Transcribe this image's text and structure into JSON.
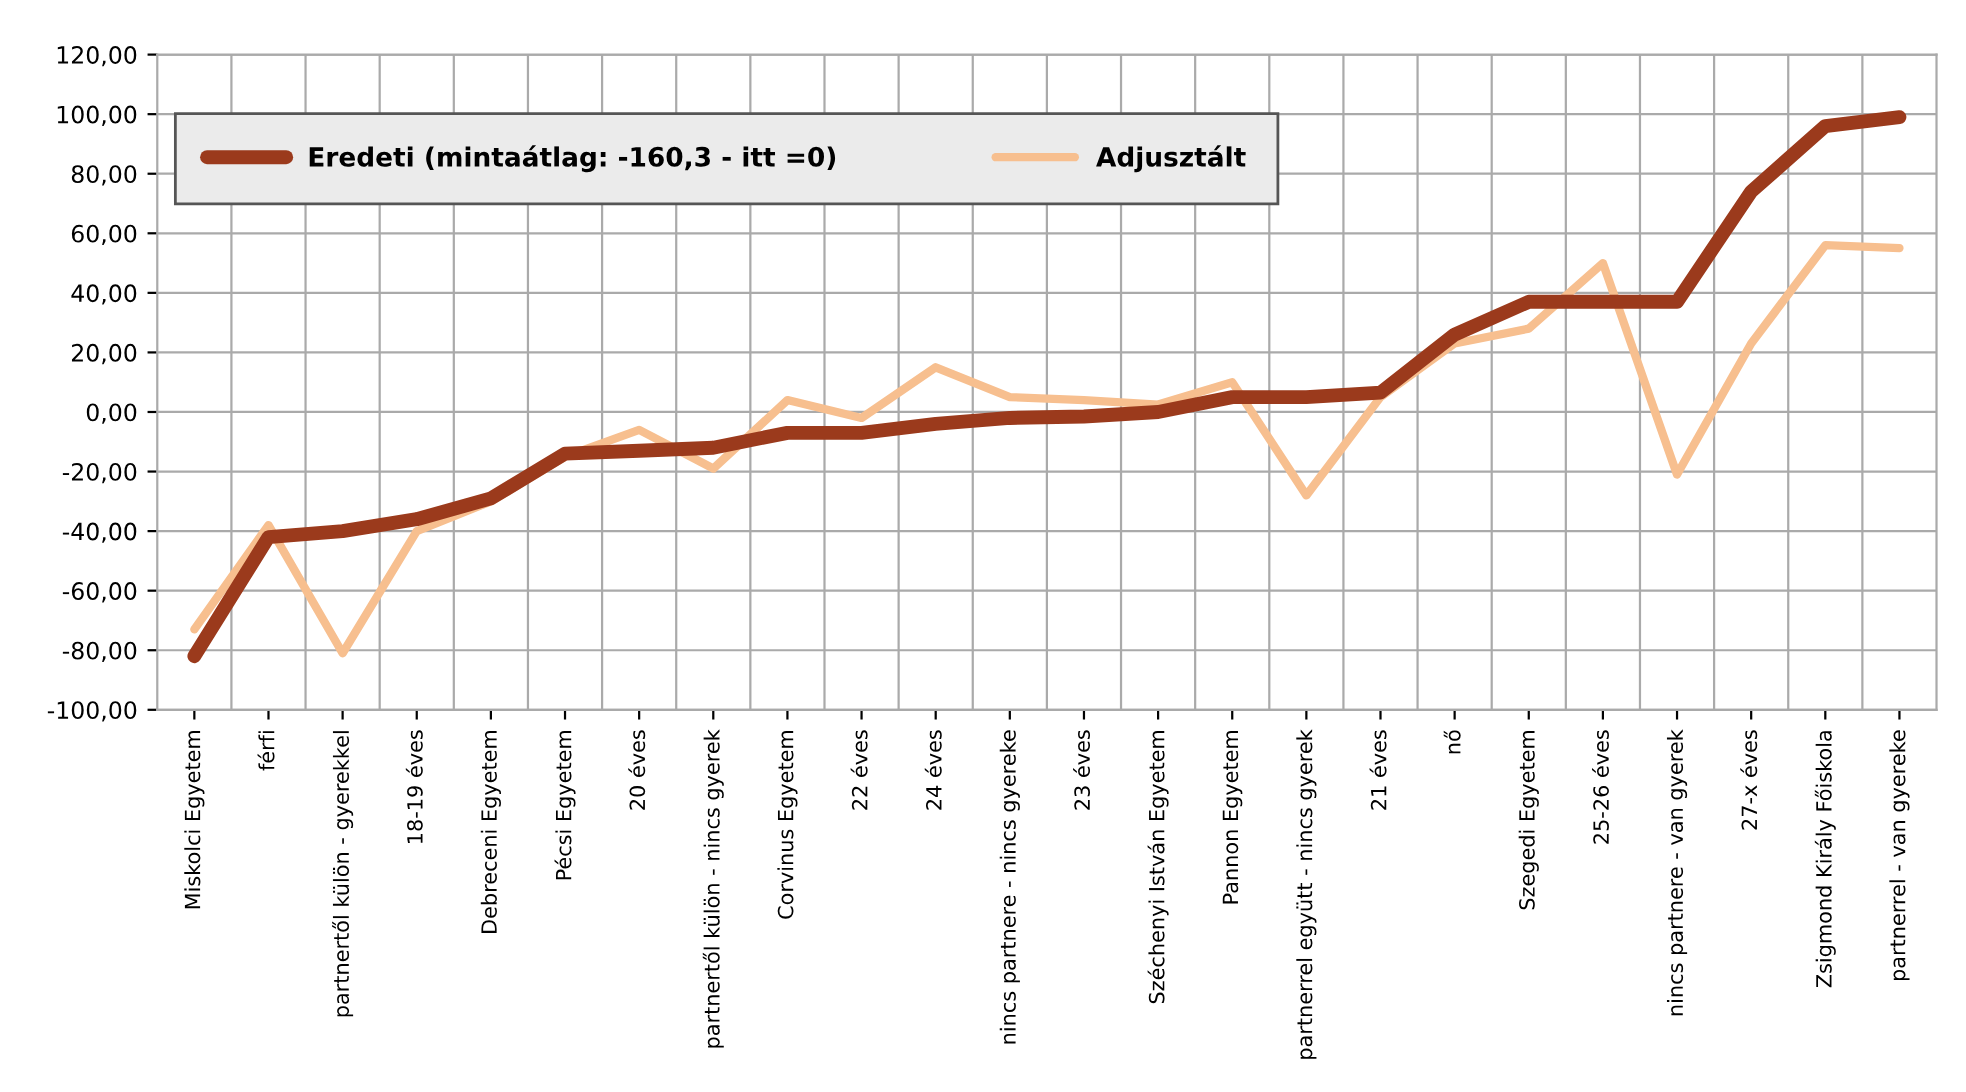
{
  "chart_data": {
    "type": "line",
    "categories": [
      "Miskolci Egyetem",
      "férfi",
      "partnertől külön - gyerekkel",
      "18-19 éves",
      "Debreceni Egyetem",
      "Pécsi Egyetem",
      "20 éves",
      "partnertől külön - nincs gyerek",
      "Corvinus Egyetem",
      "22 éves",
      "24 éves",
      "nincs partnere - nincs gyereke",
      "23 éves",
      "Széchenyi István Egyetem",
      "Pannon Egyetem",
      "partnerrel együtt - nincs gyerek",
      "21 éves",
      "nő",
      "Szegedi Egyetem",
      "25-26 éves",
      "nincs partnere - van gyerek",
      "27-x éves",
      "Zsigmond Király Főiskola",
      "partnerrel - van gyereke"
    ],
    "series": [
      {
        "name": "Eredeti (mintaátlag: -160,3 - itt =0)",
        "color": "#9b3a1c",
        "values": [
          -82,
          -42,
          -40,
          -36,
          -29,
          -14,
          -13,
          -12,
          -7,
          -7,
          -4,
          -2,
          -1.5,
          0,
          5,
          5,
          6.5,
          26,
          37,
          37,
          37,
          74,
          96,
          99
        ]
      },
      {
        "name": "Adjusztált",
        "color": "#f7bf8f",
        "values": [
          -73,
          -38,
          -81,
          -40,
          -30,
          -15,
          -6,
          -19,
          4,
          -2,
          15,
          5,
          4,
          2.5,
          10,
          -28,
          5,
          23,
          28,
          50,
          -21,
          23,
          56,
          55
        ]
      }
    ],
    "ylim": [
      -100,
      120
    ],
    "yticks": [
      {
        "value": -100,
        "label": "-100,00"
      },
      {
        "value": -80,
        "label": "-80,00"
      },
      {
        "value": -60,
        "label": "-60,00"
      },
      {
        "value": -40,
        "label": "-40,00"
      },
      {
        "value": -20,
        "label": "-20,00"
      },
      {
        "value": 0,
        "label": "0,00"
      },
      {
        "value": 20,
        "label": "20,00"
      },
      {
        "value": 40,
        "label": "40,00"
      },
      {
        "value": 60,
        "label": "60,00"
      },
      {
        "value": 80,
        "label": "80,00"
      },
      {
        "value": 100,
        "label": "100,00"
      },
      {
        "value": 120,
        "label": "120,00"
      }
    ],
    "grid": true,
    "legend": "top",
    "marker": "none",
    "line_style": "solid"
  }
}
